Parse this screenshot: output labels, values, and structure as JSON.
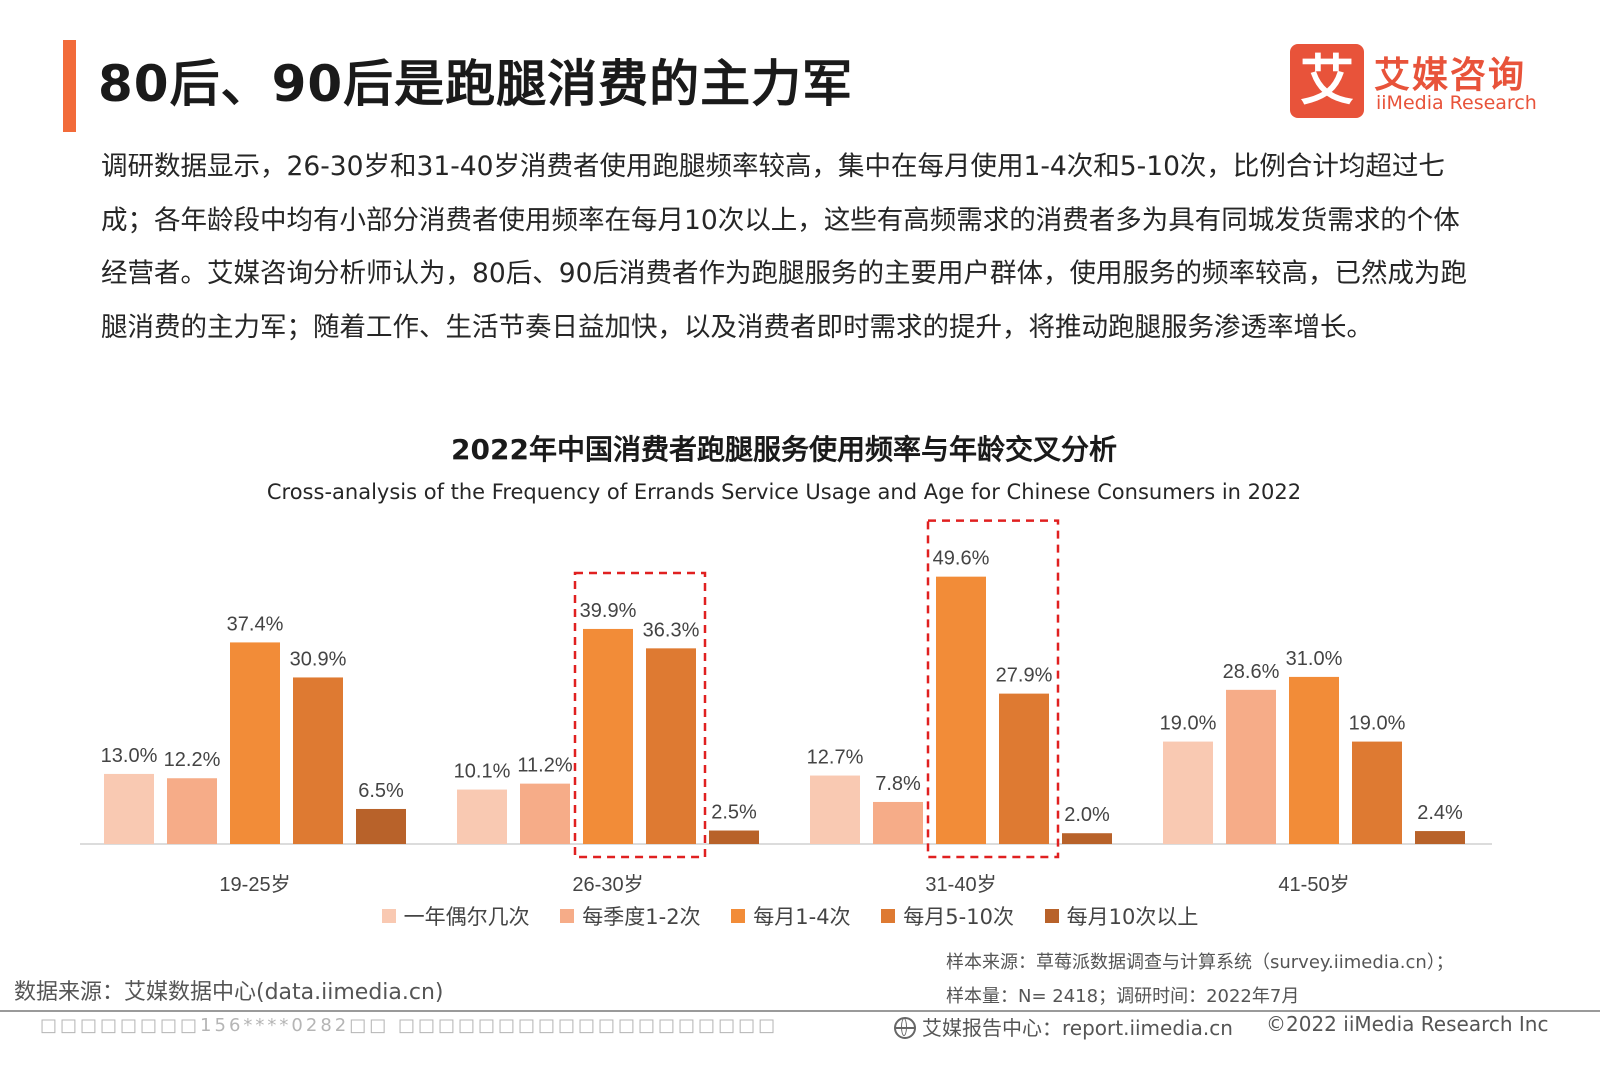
{
  "header": {
    "title": "80后、90后是跑腿消费的主力军",
    "logo_mark": "艾",
    "logo_cn": "艾媒咨询",
    "logo_en": "iiMedia Research"
  },
  "intro_text": "调研数据显示，26-30岁和31-40岁消费者使用跑腿频率较高，集中在每月使用1-4次和5-10次，比例合计均超过七成；各年龄段中均有小部分消费者使用频率在每月10次以上，这些有高频需求的消费者多为具有同城发货需求的个体经营者。艾媒咨询分析师认为，80后、90后消费者作为跑腿服务的主要用户群体，使用服务的频率较高，已然成为跑腿消费的主力军；随着工作、生活节奏日益加快，以及消费者即时需求的提升，将推动跑腿服务渗透率增长。",
  "chart_data": {
    "type": "bar",
    "title": "2022年中国消费者跑腿服务使用频率与年龄交叉分析",
    "subtitle": "Cross-analysis of the Frequency of Errands Service Usage and Age for Chinese Consumers in 2022",
    "categories": [
      "19-25岁",
      "26-30岁",
      "31-40岁",
      "41-50岁"
    ],
    "series": [
      {
        "name": "一年偶尔几次",
        "color": "#f9c9b2",
        "values": [
          13.0,
          10.1,
          12.7,
          19.0
        ]
      },
      {
        "name": "每季度1-2次",
        "color": "#f6ac88",
        "values": [
          12.2,
          11.2,
          7.8,
          28.6
        ]
      },
      {
        "name": "每月1-4次",
        "color": "#f28c38",
        "values": [
          37.4,
          39.9,
          49.6,
          31.0
        ]
      },
      {
        "name": "每月5-10次",
        "color": "#de7a32",
        "values": [
          30.9,
          36.3,
          27.9,
          19.0
        ]
      },
      {
        "name": "每月10次以上",
        "color": "#b8622a",
        "values": [
          6.5,
          2.5,
          2.0,
          2.4
        ]
      }
    ],
    "unit": "%",
    "ylim": [
      0,
      55
    ],
    "highlighted_series": [
      "每月1-4次",
      "每月5-10次"
    ],
    "highlighted_categories": [
      "26-30岁",
      "31-40岁"
    ],
    "highlight_color": "#e02020",
    "legend_position": "bottom",
    "grid": false
  },
  "sources": {
    "data_source": "数据来源：艾媒数据中心(data.iimedia.cn)",
    "sample_source": "样本来源：草莓派数据调查与计算系统（survey.iimedia.cn）；",
    "sample_size": "样本量：N= 2418；调研时间：2022年7月"
  },
  "footer": {
    "left_text": "□□□□□□□□156****0282□□ □□□□□□□□□□□□□□□□□□□",
    "report_site": "艾媒报告中心：report.iimedia.cn",
    "copyright": "©2022  iiMedia Research  Inc"
  }
}
